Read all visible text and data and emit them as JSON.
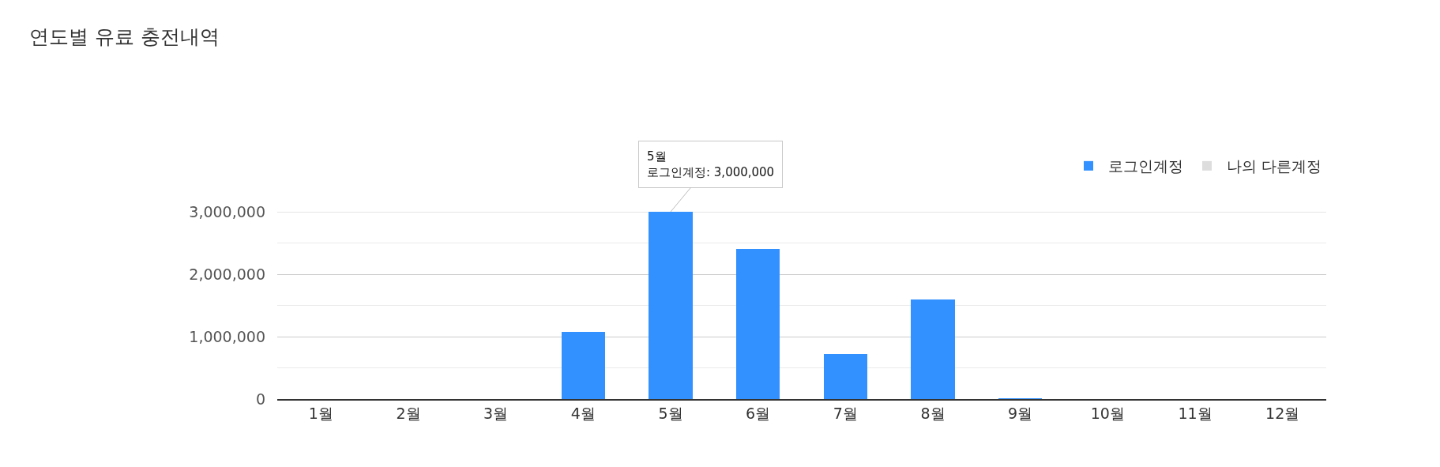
{
  "chart_data": {
    "type": "bar",
    "title": "연도별 유료 충전내역",
    "categories": [
      "1월",
      "2월",
      "3월",
      "4월",
      "5월",
      "6월",
      "7월",
      "8월",
      "9월",
      "10월",
      "11월",
      "12월"
    ],
    "series": [
      {
        "name": "로그인계정",
        "color": "#3391ff",
        "values": [
          0,
          0,
          0,
          1080000,
          3000000,
          2400000,
          720000,
          1590000,
          10000,
          0,
          0,
          0
        ]
      },
      {
        "name": "나의 다른계정",
        "color": "#dddddd",
        "values": [
          null,
          null,
          null,
          null,
          null,
          null,
          null,
          null,
          null,
          null,
          null,
          null
        ]
      }
    ],
    "stacked": true,
    "ylim": [
      0,
      3000000
    ],
    "yticks": [
      0,
      {
        "value": 500000,
        "label": null
      },
      {
        "value": 1000000,
        "label": "1,000,000"
      },
      {
        "value": 1500000,
        "label": null
      },
      {
        "value": 2000000,
        "label": "2,000,000"
      },
      {
        "value": 2500000,
        "label": null
      },
      {
        "value": 3000000,
        "label": "3,000,000"
      }
    ],
    "grid": "y",
    "legend": "top right",
    "annotations": [
      {
        "text": "5월\n로그인계정: 3,000,000",
        "x": "5월",
        "y": 3000000
      }
    ]
  }
}
